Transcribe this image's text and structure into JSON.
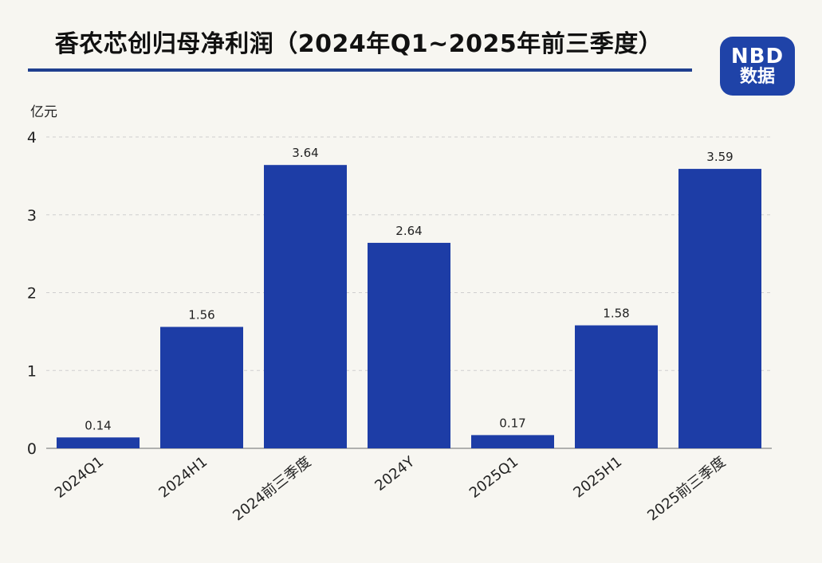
{
  "header": {
    "title": "香农芯创归母净利润（2024年Q1~2025年前三季度）",
    "logo_line1": "NBD",
    "logo_line2": "数据"
  },
  "chart_data": {
    "type": "bar",
    "title": "香农芯创归母净利润（2024年Q1~2025年前三季度）",
    "ylabel": "亿元",
    "xlabel": "",
    "ylim": [
      0,
      4
    ],
    "yticks": [
      0,
      1,
      2,
      3,
      4
    ],
    "grid": true,
    "bar_color": "#1d3da6",
    "categories": [
      "2024Q1",
      "2024H1",
      "2024前三季度",
      "2024Y",
      "2025Q1",
      "2025H1",
      "2025前三季度"
    ],
    "values": [
      0.14,
      1.56,
      3.64,
      2.64,
      0.17,
      1.58,
      3.59
    ],
    "data_labels": [
      "0.14",
      "1.56",
      "3.64",
      "2.64",
      "0.17",
      "1.58",
      "3.59"
    ]
  }
}
